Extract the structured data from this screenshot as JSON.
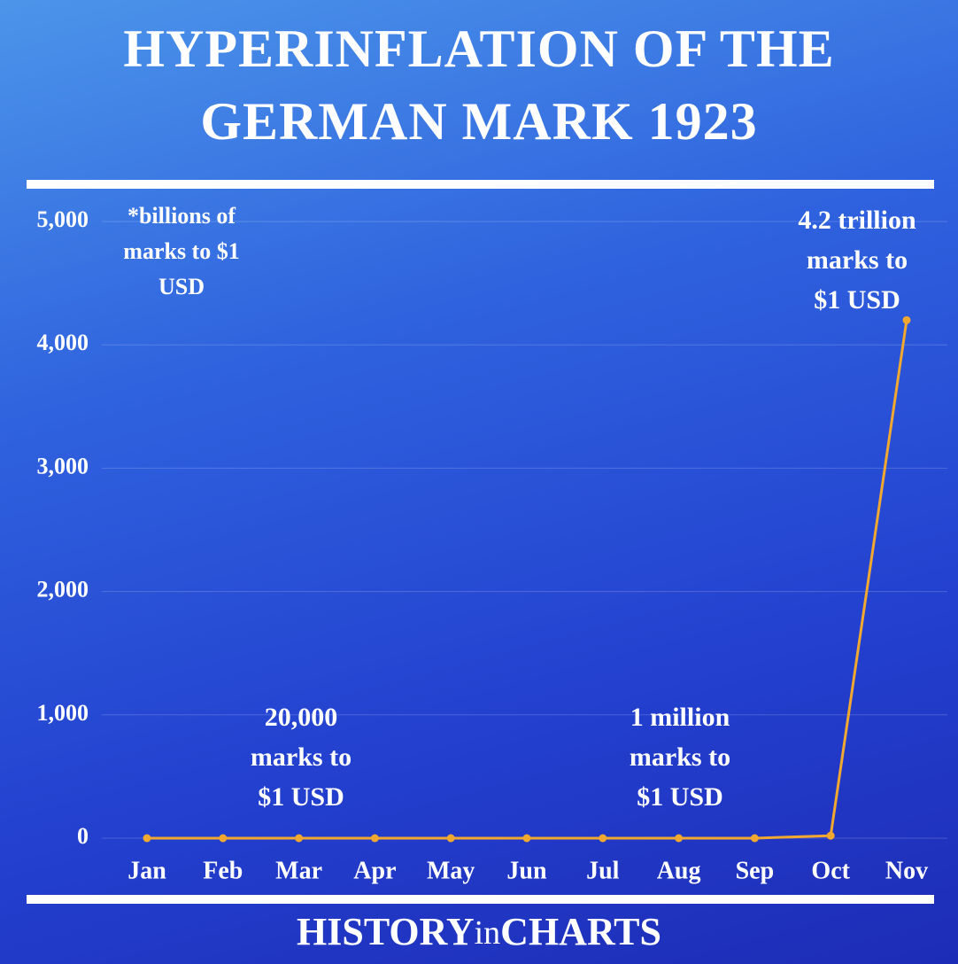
{
  "title": "HYPERINFLATION OF THE GERMAN MARK 1923",
  "footer": [
    "HISTORY",
    "in",
    "CHARTS"
  ],
  "chart_data": {
    "type": "line",
    "categories": [
      "Jan",
      "Feb",
      "Mar",
      "Apr",
      "May",
      "Jun",
      "Jul",
      "Aug",
      "Sep",
      "Oct",
      "Nov"
    ],
    "values": [
      0,
      0,
      0,
      0,
      0,
      0,
      0,
      0,
      0,
      20,
      4200
    ],
    "color": "#f0a830",
    "ylim": [
      0,
      5000
    ],
    "yticks": [
      0,
      {
        "value": 1000,
        "label": "1,000"
      },
      {
        "value": 2000,
        "label": "2,000"
      },
      {
        "value": 3000,
        "label": "3,000"
      },
      {
        "value": 4000,
        "label": "4,000"
      },
      {
        "value": 5000,
        "label": "5,000"
      }
    ],
    "grid": true,
    "annotations": [
      {
        "lines": [
          "*billions of",
          "marks to $1",
          "USD"
        ]
      },
      {
        "lines": [
          "20,000",
          "marks to",
          "$1 USD"
        ]
      },
      {
        "lines": [
          "1 million",
          "marks to",
          "$1 USD"
        ]
      },
      {
        "lines": [
          "4.2 trillion",
          "marks to",
          "$1 USD"
        ]
      }
    ]
  }
}
